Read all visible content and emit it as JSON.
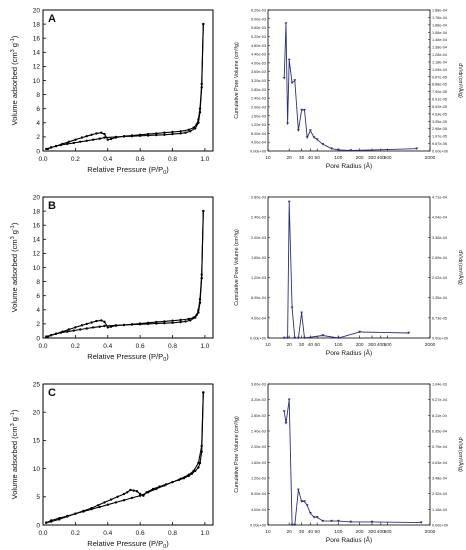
{
  "chart_data": [
    {
      "type": "line",
      "panel_label": "A",
      "xlabel": "Relative Pressure (P/P",
      "xlabel_sub": "0",
      "xlabel_close": ")",
      "ylabel": "Volume adsorbed (cm",
      "ylabel_sup1": "3",
      "ylabel_mid": " g",
      "ylabel_sup2": "-1",
      "ylabel_close": ")",
      "xlim": [
        0,
        1.05
      ],
      "ylim": [
        0,
        20
      ],
      "xticks": [
        "0.0",
        "0.2",
        "0.4",
        "0.6",
        "0.8",
        "1.0"
      ],
      "yticks": [
        "0",
        "2",
        "4",
        "6",
        "8",
        "10",
        "12",
        "14",
        "16",
        "18",
        "20"
      ],
      "series": [
        {
          "x": [
            0.02,
            0.05,
            0.08,
            0.11,
            0.15,
            0.19,
            0.23,
            0.27,
            0.31,
            0.35,
            0.38,
            0.45,
            0.5,
            0.55,
            0.6,
            0.65,
            0.7,
            0.75,
            0.8,
            0.85,
            0.88,
            0.91,
            0.94,
            0.96,
            0.97,
            0.98,
            0.99
          ],
          "y": [
            0.3,
            0.5,
            0.7,
            0.85,
            1.0,
            1.15,
            1.3,
            1.45,
            1.6,
            1.75,
            1.9,
            2.0,
            2.05,
            2.1,
            2.15,
            2.2,
            2.25,
            2.3,
            2.4,
            2.5,
            2.6,
            2.8,
            3.2,
            4.0,
            5.5,
            9.0,
            18.0
          ]
        },
        {
          "x": [
            0.99,
            0.98,
            0.97,
            0.96,
            0.95,
            0.93,
            0.9,
            0.85,
            0.8,
            0.75,
            0.7,
            0.65,
            0.6,
            0.55,
            0.5,
            0.45,
            0.42,
            0.4,
            0.38,
            0.36,
            0.33,
            0.3,
            0.27,
            0.24,
            0.2,
            0.16,
            0.12,
            0.08,
            0.05,
            0.03
          ],
          "y": [
            18.0,
            9.5,
            6.0,
            4.5,
            3.8,
            3.3,
            3.0,
            2.8,
            2.7,
            2.6,
            2.5,
            2.4,
            2.3,
            2.2,
            2.1,
            1.9,
            1.7,
            1.6,
            2.4,
            2.6,
            2.5,
            2.3,
            2.1,
            1.9,
            1.6,
            1.3,
            1.0,
            0.7,
            0.5,
            0.3
          ]
        }
      ]
    },
    {
      "type": "line",
      "xlabel": "Pore Radius (Å)",
      "ylabel": "Cumulative Pore Volume (cm³/g)",
      "ylabel_right": "dV/dr(cm³/Å/g)",
      "xscale": "log",
      "xlim": [
        10,
        2000
      ],
      "ylim": [
        0,
        0.0062
      ],
      "xticks": [
        "10",
        "20",
        "30",
        "40",
        "50",
        "100",
        "200",
        "300",
        "400",
        "500",
        "2000"
      ],
      "yticks_left": [
        "0.00e+00",
        "4.00e-04",
        "8.00e-04",
        "1.20e-03",
        "1.60e-03",
        "2.00e-03",
        "2.40e-03",
        "2.80e-03",
        "3.20e-03",
        "3.60e-03",
        "4.00e-03",
        "4.40e-03",
        "4.80e-03",
        "5.20e-03",
        "5.60e-03",
        "6.00e-03",
        "6.20e-03"
      ],
      "yticks_right": [
        "0.00e+00",
        "9.87e-06",
        "1.97e-05",
        "2.96e-05",
        "3.95e-05",
        "4.93e-05",
        "5.92e-05",
        "6.91e-05",
        "7.90e-05",
        "8.88e-05",
        "9.87e-05",
        "1.09e-04",
        "1.18e-04",
        "1.28e-04",
        "1.38e-04",
        "1.48e-04",
        "1.58e-04",
        "1.68e-04",
        "1.78e-04",
        "1.88e-04"
      ],
      "series": [
        {
          "x": [
            17,
            18,
            19,
            20,
            22,
            24,
            27,
            30,
            33,
            36,
            40,
            45,
            50,
            60,
            80,
            100,
            150,
            1300
          ],
          "y": [
            0.0032,
            0.0056,
            0.0012,
            0.004,
            0.003,
            0.0031,
            0.0009,
            0.0018,
            0.0018,
            0.0006,
            0.0009,
            0.0006,
            0.0005,
            0.0003,
            0.0001,
            5e-05,
            2e-05,
            0.0001
          ]
        }
      ]
    },
    {
      "type": "line",
      "panel_label": "B",
      "xlabel": "Relative Pressure (P/P",
      "xlabel_sub": "0",
      "xlabel_close": ")",
      "ylabel": "Volume adsorbed (cm",
      "ylabel_sup1": "3",
      "ylabel_mid": " g",
      "ylabel_sup2": "-1",
      "ylabel_close": ")",
      "xlim": [
        0,
        1.05
      ],
      "ylim": [
        0,
        20
      ],
      "xticks": [
        "0.0",
        "0.2",
        "0.4",
        "0.6",
        "0.8",
        "1.0"
      ],
      "yticks": [
        "0",
        "2",
        "4",
        "6",
        "8",
        "10",
        "12",
        "14",
        "16",
        "18",
        "20"
      ],
      "series": [
        {
          "x": [
            0.02,
            0.05,
            0.08,
            0.11,
            0.15,
            0.19,
            0.23,
            0.27,
            0.31,
            0.35,
            0.38,
            0.45,
            0.5,
            0.55,
            0.6,
            0.65,
            0.7,
            0.75,
            0.8,
            0.85,
            0.88,
            0.91,
            0.94,
            0.96,
            0.97,
            0.98,
            0.99
          ],
          "y": [
            0.2,
            0.4,
            0.6,
            0.75,
            0.9,
            1.05,
            1.2,
            1.35,
            1.5,
            1.6,
            1.7,
            1.8,
            1.85,
            1.9,
            1.95,
            2.0,
            2.05,
            2.1,
            2.15,
            2.25,
            2.35,
            2.5,
            2.9,
            3.6,
            5.0,
            8.5,
            18.0
          ]
        },
        {
          "x": [
            0.99,
            0.98,
            0.97,
            0.96,
            0.95,
            0.93,
            0.9,
            0.85,
            0.8,
            0.75,
            0.7,
            0.65,
            0.6,
            0.55,
            0.5,
            0.45,
            0.42,
            0.4,
            0.38,
            0.36,
            0.33,
            0.3,
            0.27,
            0.24,
            0.2,
            0.16,
            0.12,
            0.08,
            0.05,
            0.03
          ],
          "y": [
            18.0,
            9.0,
            5.5,
            4.0,
            3.3,
            2.9,
            2.7,
            2.55,
            2.45,
            2.35,
            2.25,
            2.15,
            2.05,
            1.95,
            1.85,
            1.75,
            1.6,
            1.5,
            2.3,
            2.5,
            2.4,
            2.2,
            2.0,
            1.8,
            1.5,
            1.2,
            0.9,
            0.6,
            0.4,
            0.2
          ]
        }
      ]
    },
    {
      "type": "line",
      "xlabel": "Pore Radius (Å)",
      "ylabel": "Cumulative Pore Volume (cm³/g)",
      "ylabel_right": "dV/dr(cm³/Å/g)",
      "xscale": "log",
      "xlim": [
        10,
        2000
      ],
      "ylim": [
        0,
        0.0028
      ],
      "xticks": [
        "10",
        "20",
        "30",
        "40",
        "50",
        "100",
        "200",
        "300",
        "400",
        "500",
        "2000"
      ],
      "yticks_left": [
        "0.00e+00",
        "4.00e-04",
        "8.00e-04",
        "1.20e-03",
        "1.60e-03",
        "2.00e-03",
        "2.40e-03",
        "2.80e-03"
      ],
      "yticks_right": [
        "0.00e+00",
        "6.73e-05",
        "1.35e-04",
        "2.02e-04",
        "2.69e-04",
        "3.36e-04",
        "4.04e-04",
        "4.71e-04"
      ],
      "series": [
        {
          "x": [
            17,
            19,
            20,
            22,
            24,
            27,
            30,
            33,
            60,
            100,
            200,
            1000
          ],
          "y": [
            0.0,
            0.0,
            0.0027,
            0.0006,
            0.0,
            0.0,
            0.0005,
            0.0,
            5e-05,
            0.0,
            0.00012,
            0.0001
          ]
        }
      ]
    },
    {
      "type": "line",
      "panel_label": "C",
      "xlabel": "Relative Pressure (P/P",
      "xlabel_sub": "0",
      "xlabel_close": ")",
      "ylabel": "Volume adsorbed (cm",
      "ylabel_sup1": "3",
      "ylabel_mid": " g",
      "ylabel_sup2": "-1",
      "ylabel_close": ")",
      "xlim": [
        0,
        1.05
      ],
      "ylim": [
        0,
        25
      ],
      "xticks": [
        "0.0",
        "0.2",
        "0.4",
        "0.6",
        "0.8",
        "1.0"
      ],
      "yticks": [
        "0",
        "5",
        "10",
        "15",
        "20",
        "25"
      ],
      "series": [
        {
          "x": [
            0.02,
            0.05,
            0.1,
            0.15,
            0.2,
            0.25,
            0.3,
            0.35,
            0.4,
            0.45,
            0.5,
            0.55,
            0.6,
            0.65,
            0.7,
            0.75,
            0.8,
            0.85,
            0.9,
            0.93,
            0.96,
            0.98,
            0.99
          ],
          "y": [
            0.4,
            0.8,
            1.2,
            1.6,
            2.0,
            2.4,
            2.8,
            3.2,
            3.6,
            4.0,
            4.4,
            4.8,
            5.2,
            5.8,
            6.4,
            7.0,
            7.6,
            8.2,
            8.9,
            9.6,
            11.0,
            14.0,
            23.5
          ]
        },
        {
          "x": [
            0.99,
            0.98,
            0.97,
            0.96,
            0.94,
            0.92,
            0.9,
            0.87,
            0.84,
            0.8,
            0.76,
            0.72,
            0.68,
            0.64,
            0.62,
            0.6,
            0.58,
            0.56,
            0.54,
            0.52,
            0.5,
            0.46,
            0.42,
            0.38,
            0.34,
            0.3,
            0.25,
            0.2,
            0.15,
            0.1,
            0.05,
            0.02
          ],
          "y": [
            23.5,
            13.0,
            11.0,
            10.2,
            9.6,
            9.1,
            8.7,
            8.3,
            8.0,
            7.6,
            7.2,
            6.8,
            6.4,
            5.8,
            5.2,
            5.5,
            6.0,
            6.1,
            6.2,
            5.8,
            5.5,
            5.0,
            4.5,
            4.0,
            3.5,
            3.0,
            2.5,
            2.0,
            1.5,
            1.0,
            0.6,
            0.4
          ]
        }
      ]
    },
    {
      "type": "line",
      "xlabel": "Pore Radius (Å)",
      "ylabel": "Cumulative Pore Volume (cm³/g)",
      "ylabel_right": "dV/dr(cm³/Å/g)",
      "xscale": "log",
      "xlim": [
        10,
        2000
      ],
      "ylim": [
        0,
        0.0036
      ],
      "xticks": [
        "10",
        "20",
        "30",
        "40",
        "50",
        "100",
        "200",
        "300",
        "400",
        "500",
        "2000"
      ],
      "yticks_left": [
        "0.00e+00",
        "4.00e-04",
        "8.00e-04",
        "1.20e-03",
        "1.60e-03",
        "2.00e-03",
        "2.40e-03",
        "2.80e-03",
        "3.20e-03",
        "3.60e-03"
      ],
      "yticks_right": [
        "0.00e+00",
        "1.16e-04",
        "2.32e-04",
        "3.48e-04",
        "4.63e-04",
        "5.79e-04",
        "6.95e-04",
        "8.11e-04",
        "9.27e-04",
        "1.04e-03"
      ],
      "series": [
        {
          "x": [
            17,
            18,
            20,
            22,
            24,
            27,
            30,
            33,
            36,
            40,
            45,
            50,
            60,
            80,
            100,
            150,
            300,
            1500
          ],
          "y": [
            0.0029,
            0.0026,
            0.0032,
            0.0,
            0.0,
            0.0009,
            0.0006,
            0.0006,
            0.0005,
            0.0003,
            0.0002,
            0.0002,
            0.0001,
            0.0001,
            0.0001,
            8e-05,
            8e-05,
            6e-05
          ]
        }
      ]
    }
  ]
}
